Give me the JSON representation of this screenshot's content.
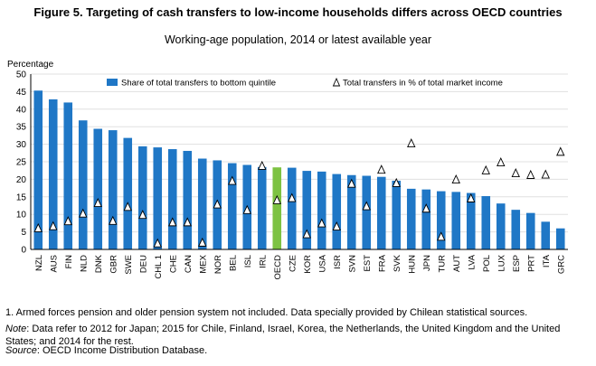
{
  "header": {
    "title": "Figure 5.  Targeting of cash transfers to low-income households differs across OECD countries",
    "subtitle": "Working-age population, 2014 or latest available year"
  },
  "colors": {
    "bar": "#1f77c6",
    "highlight": "#7dc242",
    "marker_fill": "#ffffff",
    "marker_stroke": "#000000"
  },
  "chart_data": {
    "type": "bar",
    "ylabel": "Percentage",
    "ylim": [
      0,
      50
    ],
    "yticks": [
      0,
      5,
      10,
      15,
      20,
      25,
      30,
      35,
      40,
      45,
      50
    ],
    "highlight_category": "OECD",
    "legend_position": "top",
    "categories": [
      "NZL",
      "AUS",
      "FIN",
      "NLD",
      "DNK",
      "GBR",
      "SWE",
      "DEU",
      "CHL 1",
      "CHE",
      "CAN",
      "MEX",
      "NOR",
      "BEL",
      "ISL",
      "IRL",
      "OECD",
      "CZE",
      "KOR",
      "USA",
      "ISR",
      "SVN",
      "EST",
      "FRA",
      "SVK",
      "HUN",
      "JPN",
      "TUR",
      "AUT",
      "LVA",
      "POL",
      "LUX",
      "ESP",
      "PRT",
      "ITA",
      "GRC"
    ],
    "series": [
      {
        "name": "Share of total transfers to bottom quintile",
        "kind": "bar",
        "values": [
          45.3,
          42.8,
          41.9,
          36.8,
          34.4,
          34.0,
          31.8,
          29.4,
          29.1,
          28.6,
          28.1,
          25.9,
          25.4,
          24.6,
          24.1,
          23.5,
          23.4,
          23.3,
          22.4,
          22.2,
          21.5,
          21.2,
          21.0,
          20.7,
          19.6,
          17.3,
          17.1,
          16.6,
          16.4,
          16.1,
          15.2,
          13.1,
          11.3,
          10.4,
          7.9,
          6.0
        ]
      },
      {
        "name": "Total transfers in % of total market income",
        "kind": "marker",
        "values": [
          6.0,
          6.6,
          8.0,
          10.2,
          13.2,
          8.1,
          12.1,
          9.8,
          1.7,
          7.7,
          7.7,
          1.9,
          12.8,
          19.5,
          11.2,
          23.8,
          14.0,
          14.6,
          4.3,
          7.4,
          6.5,
          18.7,
          12.3,
          22.7,
          18.9,
          30.2,
          11.6,
          3.6,
          19.9,
          14.5,
          22.5,
          24.8,
          21.7,
          21.2,
          21.3,
          27.8
        ]
      }
    ]
  },
  "footer": {
    "footnote": "1.     Armed forces pension and older pension system not included. Data specially provided by Chilean statistical sources.",
    "note_label": "Note",
    "note_text": ": Data refer to 2012 for Japan; 2015 for Chile, Finland, Israel, Korea, the Netherlands, the United Kingdom and the United States; and 2014 for the rest.",
    "source_label": "Source",
    "source_text": ": OECD Income Distribution Database."
  }
}
